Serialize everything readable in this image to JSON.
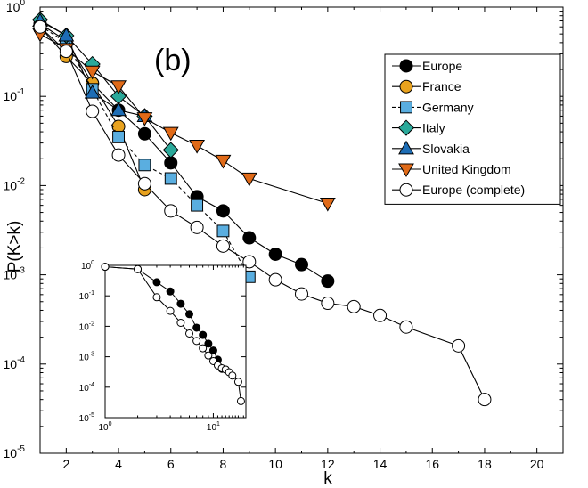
{
  "chart_data": [
    {
      "type": "line",
      "panel_label": "(b)",
      "xlabel": "k",
      "ylabel": "P(K>k)",
      "xlim": [
        1,
        21
      ],
      "ylim": [
        1e-05,
        1
      ],
      "yscale": "log",
      "xticks": [
        2,
        4,
        6,
        8,
        10,
        12,
        14,
        16,
        18,
        20
      ],
      "yticks": [
        {
          "value": 1e-05,
          "base": "10",
          "exp": "-5"
        },
        {
          "value": 0.0001,
          "base": "10",
          "exp": "-4"
        },
        {
          "value": 0.001,
          "base": "10",
          "exp": "-3"
        },
        {
          "value": 0.01,
          "base": "10",
          "exp": "-2"
        },
        {
          "value": 0.1,
          "base": "10",
          "exp": "-1"
        },
        {
          "value": 1,
          "base": "10",
          "exp": "0"
        }
      ],
      "legend_position": "top-right",
      "grid": false,
      "series": [
        {
          "name": "Europe",
          "marker": "circle",
          "fill": "#000000",
          "line": "solid",
          "color": "#000000",
          "x": [
            1,
            2,
            3,
            4,
            5,
            6,
            7,
            8,
            9,
            10,
            11,
            12
          ],
          "y": [
            0.65,
            0.42,
            0.14,
            0.07,
            0.038,
            0.018,
            0.0075,
            0.0052,
            0.0026,
            0.0017,
            0.0013,
            0.00085
          ]
        },
        {
          "name": "France",
          "marker": "circle",
          "fill": "#e8a21e",
          "line": "solid",
          "color": "#000000",
          "x": [
            1,
            2,
            3,
            4,
            5
          ],
          "y": [
            0.6,
            0.28,
            0.14,
            0.046,
            0.009
          ]
        },
        {
          "name": "Germany",
          "marker": "square",
          "fill": "#5aaee0",
          "line": "dashed",
          "color": "#000000",
          "x": [
            1,
            2,
            3,
            4,
            5,
            6,
            7,
            8,
            9
          ],
          "y": [
            0.62,
            0.4,
            0.12,
            0.035,
            0.017,
            0.012,
            0.006,
            0.0031,
            0.00095
          ]
        },
        {
          "name": "Italy",
          "marker": "diamond",
          "fill": "#2ba99a",
          "line": "solid",
          "color": "#000000",
          "x": [
            1,
            2,
            3,
            4,
            5,
            6
          ],
          "y": [
            0.72,
            0.48,
            0.23,
            0.1,
            0.06,
            0.025
          ]
        },
        {
          "name": "Slovakia",
          "marker": "triangle-up",
          "fill": "#1d6db5",
          "line": "solid",
          "color": "#000000",
          "x": [
            1,
            2,
            3,
            4,
            5
          ],
          "y": [
            0.7,
            0.48,
            0.11,
            0.07,
            0.06
          ]
        },
        {
          "name": "United Kingdom",
          "marker": "triangle-down",
          "fill": "#e06a18",
          "line": "solid",
          "color": "#000000",
          "x": [
            1,
            2,
            3,
            4,
            5,
            6,
            7,
            8,
            9,
            12
          ],
          "y": [
            0.5,
            0.34,
            0.19,
            0.13,
            0.057,
            0.039,
            0.028,
            0.019,
            0.012,
            0.0063
          ]
        },
        {
          "name": "Europe (complete)",
          "marker": "circle",
          "fill": "#ffffff",
          "line": "solid",
          "color": "#000000",
          "x": [
            1,
            2,
            3,
            4,
            5,
            6,
            7,
            8,
            9,
            10,
            11,
            12,
            13,
            14,
            15,
            17,
            18
          ],
          "y": [
            0.6,
            0.32,
            0.068,
            0.022,
            0.0105,
            0.0052,
            0.0034,
            0.0021,
            0.0014,
            0.00088,
            0.00061,
            0.00048,
            0.00044,
            0.00035,
            0.00026,
            0.00016,
            4e-05
          ]
        }
      ]
    },
    {
      "type": "line",
      "role": "inset",
      "xscale": "log",
      "yscale": "log",
      "xlim": [
        1,
        20
      ],
      "ylim": [
        1e-05,
        1
      ],
      "xticks": [
        {
          "value": 1,
          "base": "10",
          "exp": "0"
        },
        {
          "value": 10,
          "base": "10",
          "exp": "1"
        }
      ],
      "yticks": [
        {
          "value": 1e-05,
          "base": "10",
          "exp": "-5"
        },
        {
          "value": 0.0001,
          "base": "10",
          "exp": "-4"
        },
        {
          "value": 0.001,
          "base": "10",
          "exp": "-3"
        },
        {
          "value": 0.01,
          "base": "10",
          "exp": "-2"
        },
        {
          "value": 0.1,
          "base": "10",
          "exp": "-1"
        },
        {
          "value": 1,
          "base": "10",
          "exp": "0"
        }
      ],
      "series": [
        {
          "marker": "circle",
          "fill": "#000000",
          "color": "#000000",
          "x": [
            1,
            2,
            3,
            4,
            5,
            6,
            7,
            8,
            9,
            10,
            11,
            12
          ],
          "y": [
            0.9,
            0.75,
            0.28,
            0.14,
            0.055,
            0.025,
            0.009,
            0.0052,
            0.0027,
            0.0016,
            0.0008,
            0.0004
          ]
        },
        {
          "marker": "circle",
          "fill": "#ffffff",
          "color": "#000000",
          "x": [
            1,
            2,
            3,
            4,
            5,
            6,
            7,
            8,
            9,
            10,
            11,
            12,
            13,
            14,
            15,
            17,
            18
          ],
          "y": [
            0.9,
            0.75,
            0.09,
            0.032,
            0.013,
            0.0058,
            0.0033,
            0.0019,
            0.0011,
            0.00072,
            0.00052,
            0.00042,
            0.00038,
            0.00031,
            0.00024,
            0.00015,
            3.5e-05
          ]
        }
      ]
    }
  ]
}
